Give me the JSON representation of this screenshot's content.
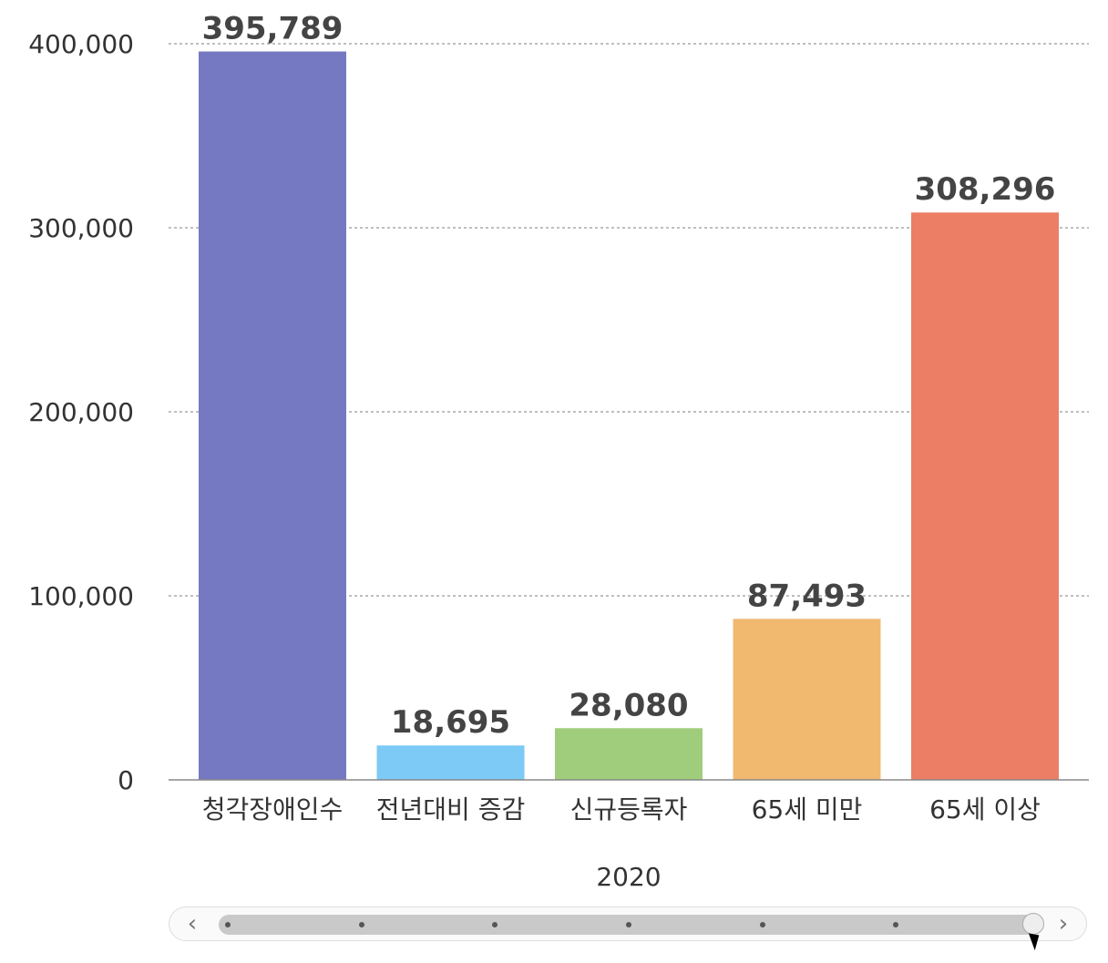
{
  "chart_data": {
    "type": "bar",
    "categories": [
      "청각장애인수",
      "전년대비 증감",
      "신규등록자",
      "65세 미만",
      "65세 이상"
    ],
    "values": [
      395789,
      18695,
      28080,
      87493,
      308296
    ],
    "value_labels": [
      "395,789",
      "18,695",
      "28,080",
      "87,493",
      "308,296"
    ],
    "colors": [
      "#7479c2",
      "#7ccaf5",
      "#9fcd7c",
      "#f1b870",
      "#eb7e65"
    ],
    "ylim": [
      0,
      400000
    ],
    "yticks": [
      0,
      100000,
      200000,
      300000,
      400000
    ],
    "ytick_labels": [
      "0",
      "100,000",
      "200,000",
      "300,000",
      "400,000"
    ],
    "grid": true,
    "xlabel": "2020"
  },
  "slider": {
    "prev_icon": "chevron-left-icon",
    "next_icon": "chevron-right-icon",
    "position": 1.0,
    "stops": 7
  }
}
